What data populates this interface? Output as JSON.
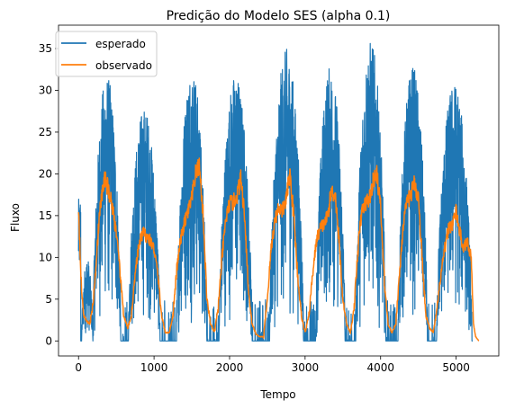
{
  "chart_data": {
    "type": "line",
    "title": "Predição do Modelo SES (alpha 0.1)",
    "xlabel": "Tempo",
    "ylabel": "Fluxo",
    "xlim": [
      -265,
      5565
    ],
    "ylim": [
      -1.8,
      37.8
    ],
    "xticks": [
      0,
      1000,
      2000,
      3000,
      4000,
      5000
    ],
    "yticks": [
      0,
      5,
      10,
      15,
      20,
      25,
      30,
      35
    ],
    "grid": false,
    "legend": {
      "position": "upper left",
      "entries": [
        "esperado",
        "observado"
      ]
    },
    "colors": {
      "esperado": "#1f77b4",
      "observado": "#ff7f0e"
    },
    "series": [
      {
        "name": "esperado",
        "color": "#1f77b4",
        "description": "dense noisy hourly flow; daily cycles reach ~30-36 at peaks, 0 at night",
        "cycles": [
          {
            "start": 40,
            "end": 190,
            "peak": 10
          },
          {
            "start": 190,
            "end": 560,
            "peak": 32
          },
          {
            "start": 660,
            "end": 1080,
            "peak": 28
          },
          {
            "start": 1300,
            "end": 1700,
            "peak": 33
          },
          {
            "start": 1860,
            "end": 2300,
            "peak": 32
          },
          {
            "start": 2530,
            "end": 2980,
            "peak": 35
          },
          {
            "start": 3140,
            "end": 3530,
            "peak": 33
          },
          {
            "start": 3670,
            "end": 4070,
            "peak": 36
          },
          {
            "start": 4230,
            "end": 4620,
            "peak": 33
          },
          {
            "start": 4740,
            "end": 5210,
            "peak": 31
          }
        ]
      },
      {
        "name": "observado",
        "color": "#ff7f0e",
        "description": "SES smoothing of esperado",
        "x": [
          0,
          20,
          40,
          70,
          100,
          150,
          200,
          250,
          300,
          350,
          400,
          450,
          500,
          550,
          600,
          650,
          700,
          750,
          800,
          850,
          900,
          950,
          1000,
          1050,
          1100,
          1150,
          1200,
          1250,
          1300,
          1350,
          1400,
          1450,
          1500,
          1550,
          1600,
          1650,
          1700,
          1750,
          1800,
          1850,
          1900,
          1950,
          2000,
          2050,
          2100,
          2150,
          2200,
          2250,
          2300,
          2350,
          2400,
          2450,
          2500,
          2550,
          2600,
          2650,
          2700,
          2750,
          2800,
          2850,
          2900,
          2950,
          3000,
          3050,
          3100,
          3150,
          3200,
          3250,
          3300,
          3350,
          3400,
          3450,
          3500,
          3550,
          3600,
          3650,
          3700,
          3750,
          3800,
          3850,
          3900,
          3950,
          4000,
          4050,
          4100,
          4150,
          4200,
          4250,
          4300,
          4350,
          4400,
          4450,
          4500,
          4550,
          4600,
          4650,
          4700,
          4750,
          4800,
          4850,
          4900,
          4950,
          5000,
          5050,
          5100,
          5150,
          5200,
          5230,
          5260,
          5300
        ],
        "values": [
          16,
          11,
          6,
          3,
          2.5,
          2,
          5,
          12,
          17,
          19.5,
          18,
          16,
          13,
          8,
          3,
          1.5,
          3,
          8,
          11.5,
          13,
          12.5,
          12,
          11,
          8,
          3,
          1,
          1,
          3,
          8.5,
          12,
          14,
          15.5,
          17,
          20,
          21,
          15,
          5,
          2,
          1,
          4,
          10,
          14.5,
          16.5,
          16.5,
          17.5,
          19.5,
          15,
          6,
          2,
          0.8,
          0.5,
          0.5,
          5,
          11,
          14.5,
          16,
          15.5,
          17,
          20,
          15,
          8,
          3,
          1,
          3,
          8,
          12,
          13.5,
          14,
          15,
          18,
          17.5,
          12,
          5,
          2,
          1,
          4,
          11,
          15.5,
          16.5,
          17,
          19,
          20,
          16,
          7,
          2,
          1,
          2,
          8,
          14,
          16.5,
          17.5,
          19,
          17,
          10,
          3,
          1.5,
          1,
          4,
          8,
          11,
          13.5,
          14,
          15.5,
          13,
          11,
          12,
          10,
          2,
          0.5,
          0
        ]
      }
    ]
  }
}
